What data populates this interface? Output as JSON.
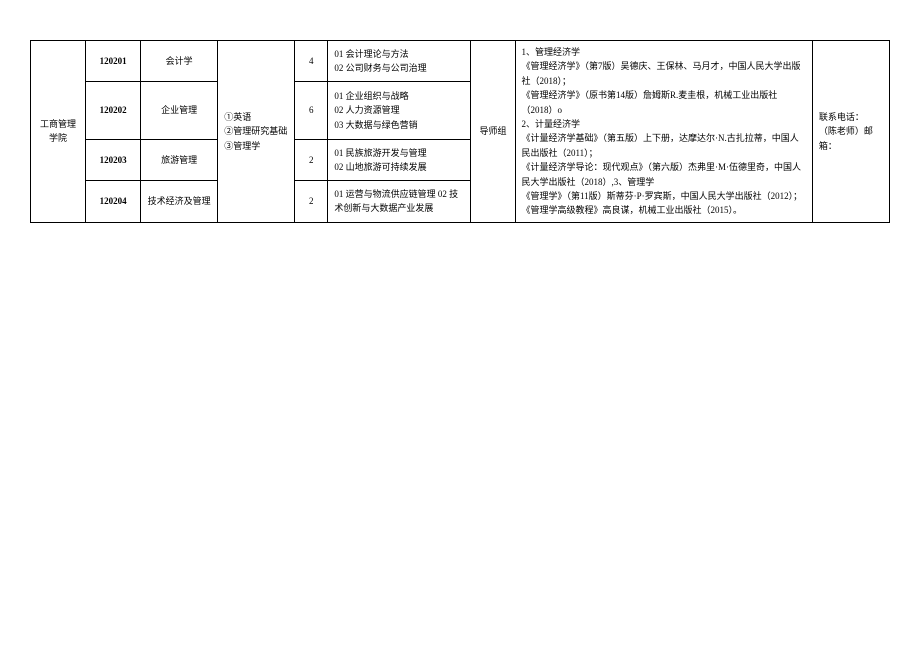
{
  "table": {
    "department": "工商管理学院",
    "subjects": "①英语\n②管理研究基础\n③管理学",
    "advisor": "导师组",
    "references": "1、管理经济学\n《管理经济学》（第7版）吴德庆、王保林、马月才，中国人民大学出版社（2018）；\n《管理经济学》（原书第14版）詹姆斯R.麦圭根，机械工业出版社（2018）o\n2、计量经济学\n《计量经济学基础》（第五版）上下册，达摩达尔·N.古扎拉蒂，中国人民出版社（2011）；\n《计量经济学导论：现代观点》（第六版）杰弗里·M·伍德里奇，中国人民大学出版社（2018）,3、管理学\n《管理学》（第11版）斯蒂芬·P·罗宾斯，中国人民大学出版社（2012）；\n《管理学高级教程》高良谋，机械工业出版社（2015）。",
    "contact": "联系电话：\n（陈老师）邮箱：",
    "rows": [
      {
        "code": "120201",
        "major": "会计学",
        "num": "4",
        "directions": "01 会计理论与方法\n02 公司财务与公司治理"
      },
      {
        "code": "120202",
        "major": "企业管理",
        "num": "6",
        "directions": "01 企业组织与战略\n02 人力资源管理\n03 大数据与绿色营销"
      },
      {
        "code": "120203",
        "major": "旅游管理",
        "num": "2",
        "directions": "01 民族旅游开发与管理\n02 山地旅游可持续发展"
      },
      {
        "code": "120204",
        "major": "技术经济及管理",
        "num": "2",
        "directions": "01 运营与物流供应链管理 02 技术创新与大数据产业发展"
      }
    ]
  }
}
